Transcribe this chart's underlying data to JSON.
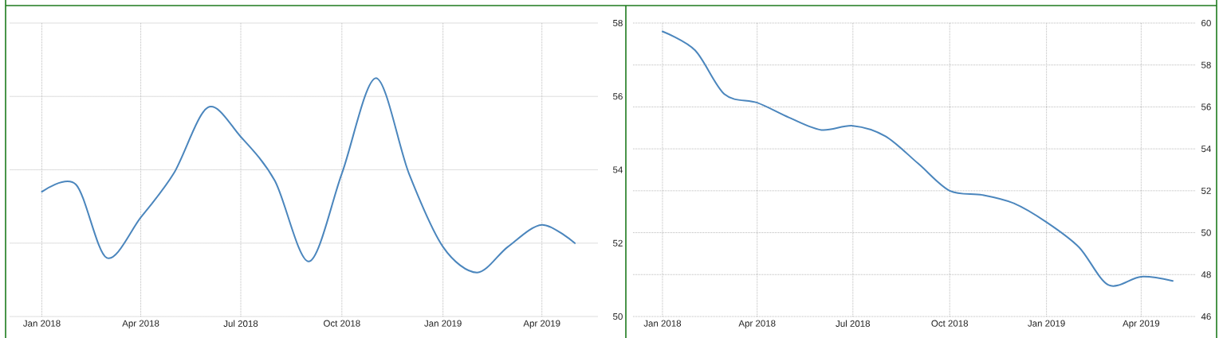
{
  "chart_data": [
    {
      "type": "line",
      "x": [
        "2018-01",
        "2018-02",
        "2018-03",
        "2018-04",
        "2018-05",
        "2018-06",
        "2018-07",
        "2018-08",
        "2018-09",
        "2018-10",
        "2018-11",
        "2018-12",
        "2019-01",
        "2019-02",
        "2019-03",
        "2019-04",
        "2019-05"
      ],
      "values": [
        53.4,
        53.6,
        51.6,
        52.7,
        53.9,
        55.7,
        54.9,
        53.7,
        51.5,
        53.9,
        56.5,
        53.9,
        51.9,
        51.2,
        51.9,
        52.5,
        52.0
      ],
      "color": "#4b86bd",
      "xlim": [
        "2017-12-03",
        "2019-05-22"
      ],
      "xticks": [
        {
          "value": "2018-01",
          "label": "Jan 2018"
        },
        {
          "value": "2018-04",
          "label": "Apr 2018"
        },
        {
          "value": "2018-07",
          "label": "Jul 2018"
        },
        {
          "value": "2018-10",
          "label": "Oct 2018"
        },
        {
          "value": "2019-01",
          "label": "Jan 2019"
        },
        {
          "value": "2019-04",
          "label": "Apr 2019"
        }
      ],
      "ylim": [
        50,
        58
      ],
      "yticks": [
        50,
        52,
        54,
        56,
        58
      ],
      "grid": true
    },
    {
      "type": "line",
      "x": [
        "2018-01",
        "2018-02",
        "2018-03",
        "2018-04",
        "2018-05",
        "2018-06",
        "2018-07",
        "2018-08",
        "2018-09",
        "2018-10",
        "2018-11",
        "2018-12",
        "2019-01",
        "2019-02",
        "2019-03",
        "2019-04",
        "2019-05"
      ],
      "values": [
        59.6,
        58.7,
        56.6,
        56.2,
        55.5,
        54.9,
        55.1,
        54.6,
        53.3,
        52.0,
        51.8,
        51.4,
        50.5,
        49.3,
        47.5,
        47.9,
        47.7
      ],
      "color": "#4b86bd",
      "xlim": [
        "2017-12-04",
        "2019-05-23"
      ],
      "xticks": [
        {
          "value": "2018-01",
          "label": "Jan 2018"
        },
        {
          "value": "2018-04",
          "label": "Apr 2018"
        },
        {
          "value": "2018-07",
          "label": "Jul 2018"
        },
        {
          "value": "2018-10",
          "label": "Oct 2018"
        },
        {
          "value": "2019-01",
          "label": "Jan 2019"
        },
        {
          "value": "2019-04",
          "label": "Apr 2019"
        }
      ],
      "ylim": [
        46,
        60
      ],
      "yticks": [
        46,
        48,
        50,
        52,
        54,
        56,
        58,
        60
      ],
      "grid": true
    }
  ]
}
